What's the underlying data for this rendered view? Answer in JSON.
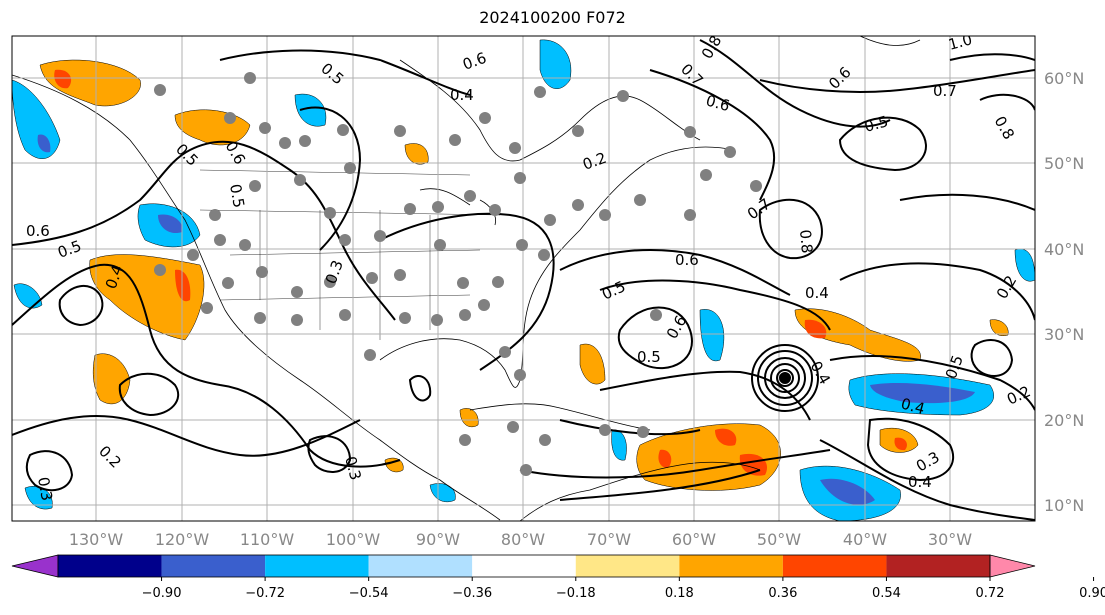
{
  "title": "2024100200 F072",
  "map": {
    "lat_labels": [
      "60°N",
      "50°N",
      "40°N",
      "30°N",
      "20°N",
      "10°N"
    ],
    "lon_labels": [
      "130°W",
      "120°W",
      "110°W",
      "100°W",
      "90°W",
      "80°W",
      "70°W",
      "60°W",
      "50°W",
      "40°W",
      "30°W"
    ],
    "contour_labels": [
      "0.5",
      "0.6",
      "0.4",
      "0.7",
      "0.8",
      "0.6",
      "0.7",
      "0.6",
      "0.5",
      "0.8",
      "1.0",
      "0.2",
      "0.6",
      "0.5",
      "0.4",
      "0.3",
      "0.6",
      "0.5",
      "0.7",
      "0.8",
      "0.6",
      "0.5",
      "0.4",
      "0.5",
      "0.6",
      "0.5",
      "0.4",
      "0.2",
      "0.3",
      "0.3",
      "0.2",
      "0.2",
      "0.4",
      "0.5",
      "0.3",
      "0.4"
    ]
  },
  "colorbar": {
    "ticks": [
      "−0.90",
      "−0.72",
      "−0.54",
      "−0.36",
      "−0.18",
      "0.18",
      "0.36",
      "0.54",
      "0.72",
      "0.90"
    ],
    "colors": [
      "#9932cc",
      "#00008b",
      "#3a5fcd",
      "#00bfff",
      "#b0e0ff",
      "#ffffff",
      "#ffe787",
      "#ffa500",
      "#ff4500",
      "#b22222",
      "#ff88aa"
    ]
  },
  "colors": {
    "land_outline": "#000000",
    "grid": "#b0b0b0",
    "station": "#808080",
    "orange": "#ffa500",
    "red": "#ff4500",
    "sky": "#00bfff",
    "blue": "#3a5fcd"
  }
}
